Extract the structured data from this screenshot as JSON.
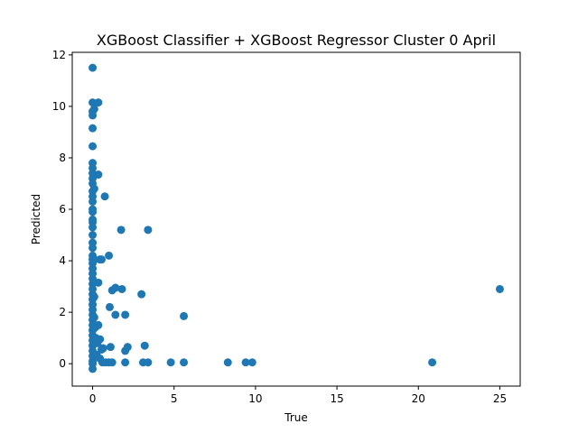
{
  "chart_data": {
    "type": "scatter",
    "title": "XGBoost Classifier + XGBoost Regressor Cluster 0 April",
    "xlabel": "True",
    "ylabel": "Predicted",
    "xlim": [
      -1.25,
      26.25
    ],
    "ylim": [
      -0.87,
      12.1
    ],
    "xticks": [
      0,
      5,
      10,
      15,
      20,
      25
    ],
    "yticks": [
      0,
      2,
      4,
      6,
      8,
      10,
      12
    ],
    "grid": false,
    "marker_color": "#1f77b4",
    "points": [
      [
        0,
        11.5
      ],
      [
        0,
        10.15
      ],
      [
        0.35,
        10.15
      ],
      [
        0.1,
        9.9
      ],
      [
        0,
        9.8
      ],
      [
        0,
        9.65
      ],
      [
        0,
        9.15
      ],
      [
        0,
        8.45
      ],
      [
        0,
        7.8
      ],
      [
        0,
        7.6
      ],
      [
        0,
        7.4
      ],
      [
        0,
        7.2
      ],
      [
        0.35,
        7.35
      ],
      [
        0,
        7.0
      ],
      [
        0.1,
        6.8
      ],
      [
        0,
        6.7
      ],
      [
        0,
        6.5
      ],
      [
        0.75,
        6.5
      ],
      [
        0,
        6.3
      ],
      [
        0,
        6.0
      ],
      [
        0,
        5.9
      ],
      [
        0,
        5.6
      ],
      [
        0,
        5.5
      ],
      [
        0,
        5.3
      ],
      [
        0,
        5.0
      ],
      [
        0,
        4.7
      ],
      [
        0,
        4.5
      ],
      [
        0,
        4.2
      ],
      [
        0,
        4.05
      ],
      [
        0,
        3.9
      ],
      [
        0.1,
        4.05
      ],
      [
        0.45,
        4.05
      ],
      [
        0.55,
        4.05
      ],
      [
        1.0,
        4.2
      ],
      [
        1.75,
        5.2
      ],
      [
        3.4,
        5.2
      ],
      [
        0,
        3.7
      ],
      [
        0,
        3.5
      ],
      [
        0,
        3.3
      ],
      [
        0,
        3.1
      ],
      [
        0.35,
        3.15
      ],
      [
        0,
        2.9
      ],
      [
        0,
        2.7
      ],
      [
        0.1,
        2.6
      ],
      [
        0,
        2.5
      ],
      [
        0,
        2.3
      ],
      [
        0,
        2.1
      ],
      [
        0,
        1.9
      ],
      [
        0,
        1.7
      ],
      [
        0,
        1.5
      ],
      [
        0,
        1.3
      ],
      [
        0,
        1.1
      ],
      [
        0,
        0.9
      ],
      [
        0,
        0.7
      ],
      [
        0,
        0.5
      ],
      [
        0,
        0.3
      ],
      [
        0,
        0.1
      ],
      [
        0,
        0
      ],
      [
        0,
        -0.2
      ],
      [
        0.1,
        1.8
      ],
      [
        0.15,
        1.4
      ],
      [
        0.35,
        1.5
      ],
      [
        0.2,
        1.0
      ],
      [
        0.3,
        0.8
      ],
      [
        0.45,
        0.95
      ],
      [
        0.55,
        0.55
      ],
      [
        0.65,
        0.6
      ],
      [
        0.25,
        0.35
      ],
      [
        0.45,
        0.2
      ],
      [
        0.6,
        0.05
      ],
      [
        0.8,
        0.05
      ],
      [
        1.0,
        0.05
      ],
      [
        1.2,
        0.05
      ],
      [
        1.1,
        0.65
      ],
      [
        1.05,
        2.2
      ],
      [
        1.2,
        2.85
      ],
      [
        1.4,
        2.95
      ],
      [
        1.8,
        2.9
      ],
      [
        1.4,
        1.9
      ],
      [
        2.0,
        1.9
      ],
      [
        3.0,
        2.7
      ],
      [
        2.0,
        0.5
      ],
      [
        2.15,
        0.65
      ],
      [
        2.0,
        0.05
      ],
      [
        3.1,
        0.05
      ],
      [
        3.4,
        0.05
      ],
      [
        3.2,
        0.7
      ],
      [
        4.8,
        0.05
      ],
      [
        5.6,
        1.85
      ],
      [
        5.6,
        0.05
      ],
      [
        8.3,
        0.05
      ],
      [
        9.4,
        0.05
      ],
      [
        9.8,
        0.05
      ],
      [
        20.85,
        0.05
      ],
      [
        25.0,
        2.9
      ]
    ]
  }
}
